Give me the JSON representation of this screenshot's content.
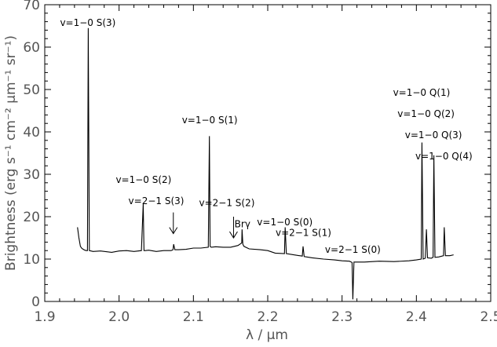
{
  "chart_data": {
    "type": "line",
    "title": "",
    "xlabel": "λ / μm",
    "ylabel": "Brightness (erg s⁻¹ cm⁻² μm⁻¹ sr⁻¹)",
    "xlim": [
      1.9,
      2.5
    ],
    "ylim": [
      0,
      70
    ],
    "xticks": [
      1.9,
      2.0,
      2.1,
      2.2,
      2.3,
      2.4,
      2.5
    ],
    "yticks": [
      0,
      10,
      20,
      30,
      40,
      50,
      60,
      70
    ],
    "xtick_labels": [
      "1.9",
      "2.0",
      "2.1",
      "2.2",
      "2.3",
      "2.4",
      "2.5"
    ],
    "ytick_labels": [
      "0",
      "10",
      "20",
      "30",
      "40",
      "50",
      "60",
      "70"
    ],
    "grid": false,
    "legend": null,
    "series": [
      {
        "x": [
          1.944,
          1.946,
          1.948,
          1.95,
          1.952,
          1.954,
          1.956,
          1.9575,
          1.9585,
          1.96,
          1.965,
          1.975,
          1.99,
          2.0,
          2.01,
          2.02,
          2.03,
          2.0325,
          2.0335,
          2.035,
          2.04,
          2.05,
          2.06,
          2.07,
          2.0725,
          2.0735,
          2.075,
          2.08,
          2.09,
          2.1,
          2.11,
          2.12,
          2.1215,
          2.1225,
          2.124,
          2.13,
          2.14,
          2.15,
          2.16,
          2.165,
          2.1655,
          2.1665,
          2.168,
          2.175,
          2.19,
          2.2,
          2.21,
          2.2225,
          2.2235,
          2.225,
          2.235,
          2.2465,
          2.2475,
          2.249,
          2.26,
          2.275,
          2.29,
          2.3,
          2.31,
          2.3135,
          2.3145,
          2.316,
          2.33,
          2.35,
          2.37,
          2.39,
          2.4,
          2.4065,
          2.4075,
          2.409,
          2.412,
          2.4135,
          2.415,
          2.42,
          2.4225,
          2.4235,
          2.425,
          2.43,
          2.4365,
          2.4375,
          2.439,
          2.445,
          2.45
        ],
        "y": [
          17.5,
          15,
          13,
          12.5,
          12.3,
          12.1,
          12,
          12,
          64.5,
          12,
          11.8,
          11.9,
          11.6,
          11.9,
          12,
          11.8,
          12,
          23,
          12,
          12,
          12.1,
          11.8,
          12,
          12,
          12.2,
          13.5,
          12.2,
          12.2,
          12.3,
          12.6,
          12.6,
          12.8,
          39,
          13,
          12.8,
          12.9,
          12.8,
          12.8,
          13.2,
          13.8,
          17,
          13.5,
          13,
          12.4,
          12.2,
          12,
          11.4,
          11.3,
          17.5,
          11.3,
          11,
          10.7,
          13,
          10.6,
          10.3,
          10,
          9.8,
          9.6,
          9.5,
          9.2,
          0.5,
          9.3,
          9.3,
          9.5,
          9.4,
          9.6,
          9.8,
          10,
          37.5,
          10,
          10.2,
          17,
          10.3,
          10.2,
          10.4,
          34.5,
          10.4,
          10.5,
          10.8,
          17.5,
          10.8,
          10.8,
          11
        ]
      }
    ],
    "annotations": [
      {
        "text": "v=1−0 S(3)",
        "x": 1.958,
        "y": 65
      },
      {
        "text": "v=1−0 S(2)",
        "x": 2.033,
        "y": 28
      },
      {
        "text": "v=2−1 S(3)",
        "x": 2.05,
        "y": 23
      },
      {
        "text": "v=1−0 S(1)",
        "x": 2.122,
        "y": 42
      },
      {
        "text": "v=2−1 S(2)",
        "x": 2.145,
        "y": 22.5
      },
      {
        "text": "Brγ",
        "x": 2.166,
        "y": 17.5
      },
      {
        "text": "v=1−0 S(0)",
        "x": 2.223,
        "y": 18
      },
      {
        "text": "v=2−1 S(1)",
        "x": 2.248,
        "y": 15.5
      },
      {
        "text": "v=2−1 S(0)",
        "x": 2.3145,
        "y": 11.5
      },
      {
        "text": "v=1−0 Q(1)",
        "x": 2.407,
        "y": 48.5
      },
      {
        "text": "v=1−0 Q(2)",
        "x": 2.413,
        "y": 43.5
      },
      {
        "text": "v=1−0 Q(3)",
        "x": 2.423,
        "y": 38.5
      },
      {
        "text": "v=1−0 Q(4)",
        "x": 2.437,
        "y": 33.5
      }
    ],
    "arrows": [
      {
        "x": 2.073,
        "y_top": 21,
        "y_bottom": 16
      },
      {
        "x": 2.154,
        "y_top": 20,
        "y_bottom": 15
      }
    ]
  }
}
